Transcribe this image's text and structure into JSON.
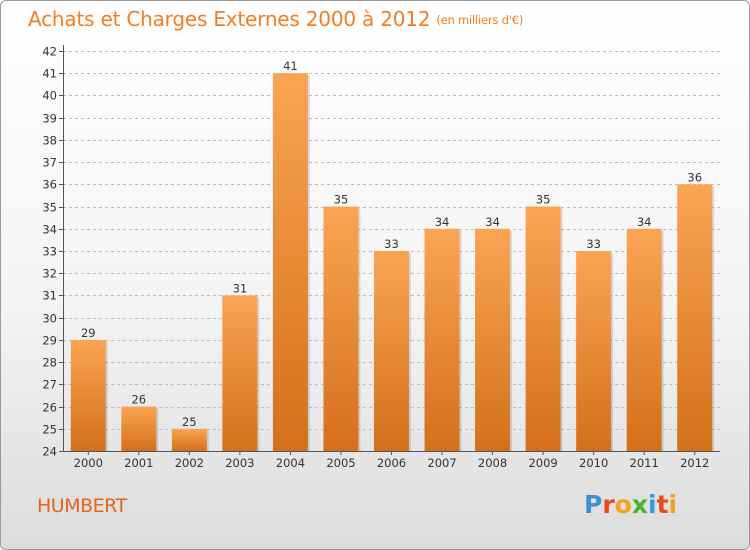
{
  "header": {
    "title": "Achats et Charges Externes 2000 à 2012",
    "unit": "(en milliers d'€)"
  },
  "footer": {
    "commune": "HUMBERT",
    "logo_text": "Proxiti",
    "logo_colors": [
      "#3a8fd8",
      "#e8491d",
      "#f2a31b",
      "#4caf32",
      "#2f9be0",
      "#e8491d",
      "#f2a31b"
    ]
  },
  "colors": {
    "bar_top": "#f9a554",
    "bar_bottom": "#d4701b",
    "title": "#f57c1f",
    "axis": "#555555",
    "grid": "#bdbdbd"
  },
  "chart_data": {
    "type": "bar",
    "title": "Achats et Charges Externes 2000 à 2012",
    "subtitle": "(en milliers d'€)",
    "xlabel": "",
    "ylabel": "",
    "categories": [
      "2000",
      "2001",
      "2002",
      "2003",
      "2004",
      "2005",
      "2006",
      "2007",
      "2008",
      "2009",
      "2010",
      "2011",
      "2012"
    ],
    "values": [
      29,
      26,
      25,
      31,
      41,
      35,
      33,
      34,
      34,
      35,
      33,
      34,
      36
    ],
    "ylim": [
      24,
      42
    ],
    "ytick_step": 1,
    "grid": "horizontal-dashed",
    "data_labels": true
  }
}
